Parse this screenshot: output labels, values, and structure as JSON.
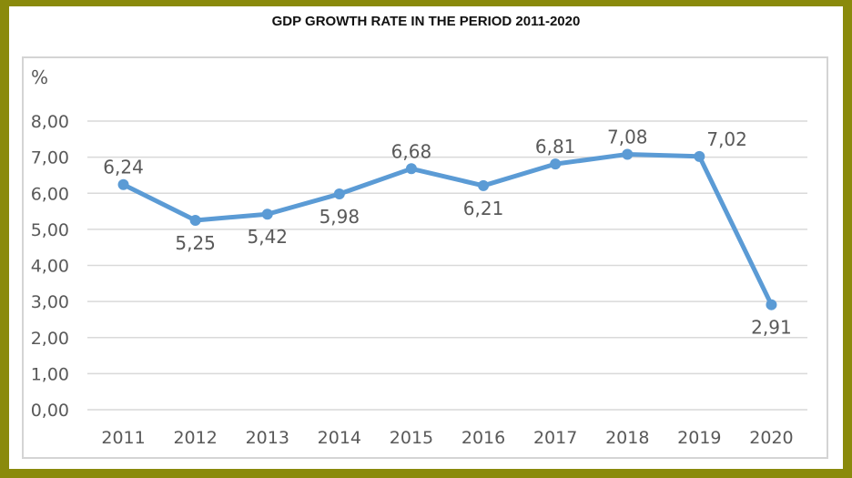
{
  "chart_data": {
    "type": "line",
    "title": "GDP GROWTH RATE IN THE PERIOD 2011-2020",
    "ylabel": "%",
    "xlabel": "",
    "categories": [
      "2011",
      "2012",
      "2013",
      "2014",
      "2015",
      "2016",
      "2017",
      "2018",
      "2019",
      "2020"
    ],
    "series": [
      {
        "values": [
          6.24,
          5.25,
          5.42,
          5.98,
          6.68,
          6.21,
          6.81,
          7.08,
          7.02,
          2.91
        ],
        "data_labels": [
          "6,24",
          "5,25",
          "5,42",
          "5,98",
          "6,68",
          "6,21",
          "6,81",
          "7,08",
          "7,02",
          "2,91"
        ],
        "label_positions": [
          "above",
          "below",
          "below",
          "below",
          "above",
          "below",
          "above",
          "above",
          "right",
          "below"
        ]
      }
    ],
    "yticks": [
      "0,00",
      "1,00",
      "2,00",
      "3,00",
      "4,00",
      "5,00",
      "6,00",
      "7,00",
      "8,00"
    ],
    "ylim": [
      0,
      8
    ],
    "grid": true,
    "line_color": "#5b9bd5",
    "grid_color": "#d9d9d9",
    "frame_color": "#8a8a0c"
  }
}
